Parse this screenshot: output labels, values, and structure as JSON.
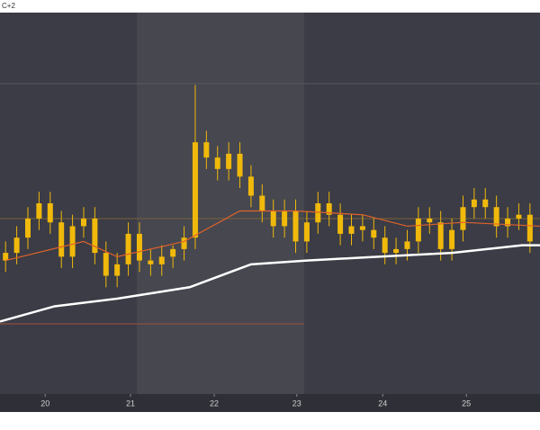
{
  "chart_data": {
    "type": "candlestick",
    "title": "C+2",
    "x": [
      0,
      1,
      2,
      3,
      4,
      5,
      6,
      7,
      8,
      9,
      10,
      11,
      12,
      13,
      14,
      15,
      16,
      17,
      18,
      19,
      20,
      21,
      22,
      23,
      24,
      25,
      26,
      27,
      28,
      29,
      30,
      31,
      32,
      33,
      34,
      35,
      36,
      37,
      38,
      39,
      40,
      41,
      42,
      43,
      44,
      45,
      46,
      47
    ],
    "open": [
      35,
      37,
      41,
      46,
      50,
      45,
      36,
      44,
      46,
      37,
      31,
      34,
      42,
      35,
      34,
      36,
      38,
      41,
      66,
      62,
      59,
      63,
      57,
      52,
      48,
      44,
      48,
      40,
      45,
      50,
      47,
      42,
      44,
      43,
      41,
      37,
      38,
      40,
      46,
      45,
      38,
      43,
      49,
      51,
      49,
      44,
      46,
      47
    ],
    "high": [
      40,
      44,
      49,
      53,
      53,
      48,
      47,
      49,
      49,
      40,
      37,
      45,
      45,
      38,
      39,
      39,
      44,
      81,
      69,
      65,
      66,
      66,
      60,
      55,
      51,
      51,
      51,
      48,
      53,
      53,
      50,
      47,
      47,
      46,
      44,
      41,
      43,
      49,
      49,
      48,
      46,
      52,
      54,
      54,
      52,
      49,
      50,
      50
    ],
    "low": [
      32,
      34,
      38,
      43,
      42,
      33,
      33,
      41,
      34,
      28,
      28,
      31,
      32,
      31,
      31,
      33,
      35,
      38,
      59,
      56,
      56,
      54,
      49,
      45,
      41,
      41,
      37,
      37,
      42,
      44,
      39,
      39,
      40,
      38,
      34,
      34,
      35,
      37,
      42,
      35,
      35,
      40,
      46,
      46,
      41,
      41,
      43,
      37
    ],
    "close": [
      37,
      41,
      46,
      50,
      45,
      36,
      44,
      46,
      37,
      31,
      34,
      42,
      35,
      34,
      36,
      38,
      41,
      66,
      62,
      59,
      63,
      57,
      52,
      48,
      44,
      48,
      40,
      45,
      50,
      47,
      42,
      44,
      43,
      41,
      37,
      38,
      40,
      46,
      45,
      38,
      43,
      49,
      51,
      49,
      44,
      46,
      47,
      40
    ],
    "color": "#f0b90b",
    "series": [
      {
        "color": "#e0622a",
        "x": [
          0,
          7,
          10,
          16,
          21,
          26,
          32,
          36,
          41,
          47.9
        ],
        "values": [
          35,
          40,
          36,
          40,
          48,
          48,
          47,
          44,
          45,
          44
        ]
      },
      {
        "color": "#ffffff",
        "x": [
          -0.5,
          4.4,
          10,
          16.5,
          22,
          27,
          33.4,
          40,
          46.3,
          47.9
        ],
        "values": [
          19,
          23,
          25,
          28,
          34,
          35,
          36,
          37,
          39,
          39
        ]
      }
    ],
    "xlim": [
      -0.5,
      47.9
    ],
    "ylim": [
      0,
      100
    ],
    "xticks": [
      {
        "value": 3.55,
        "label": "20"
      },
      {
        "value": 11.2,
        "label": "21"
      },
      {
        "value": 18.7,
        "label": "22"
      },
      {
        "value": 26.1,
        "label": "23"
      },
      {
        "value": 33.8,
        "label": "24"
      },
      {
        "value": 41.3,
        "label": "25"
      }
    ]
  }
}
